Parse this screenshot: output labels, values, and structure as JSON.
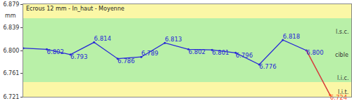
{
  "chart_data": {
    "type": "line",
    "title": "Ecrous 12 mm - In_haut - Moyenne",
    "y_label": "mm",
    "categories": [
      null,
      null,
      null,
      null,
      null,
      null,
      null,
      null,
      null,
      null,
      null,
      null,
      null,
      null
    ],
    "values": [
      6.804,
      6.802,
      6.793,
      6.814,
      6.786,
      6.789,
      6.813,
      6.802,
      6.801,
      6.796,
      6.776,
      6.818,
      6.8,
      6.724
    ],
    "value_labels": [
      null,
      "6.802",
      "6.793",
      "6.814",
      "6.786",
      "6.789",
      "6.813",
      "6.802",
      "6.801",
      "6.796",
      "6.776",
      "6.818",
      "6.800",
      "6.724"
    ],
    "data_labels": true,
    "color": "#2727d8",
    "colors": [
      "#2727d8",
      "#2727d8",
      "#2727d8",
      "#2727d8",
      "#2727d8",
      "#2727d8",
      "#2727d8",
      "#2727d8",
      "#2727d8",
      "#2727d8",
      "#2727d8",
      "#2727d8",
      "#2727d8",
      "#ff4a1c"
    ],
    "ylim": [
      6.721,
      6.879
    ],
    "yticks": [
      6.721,
      6.761,
      {
        "value": 6.8,
        "label": "6.800"
      },
      6.839,
      6.879
    ],
    "tick_labels": "y",
    "grid": false,
    "bands": [
      {
        "from": 6.746,
        "to": 6.855,
        "color": "#b9f0a8"
      }
    ],
    "limits": [
      {
        "label": "l.s.c.",
        "value": 6.839
      },
      {
        "label": "cible",
        "value": 6.8
      },
      {
        "label": "l.i.c.",
        "value": 6.761
      },
      {
        "label": "l.i.t.",
        "value": 6.721
      }
    ]
  }
}
